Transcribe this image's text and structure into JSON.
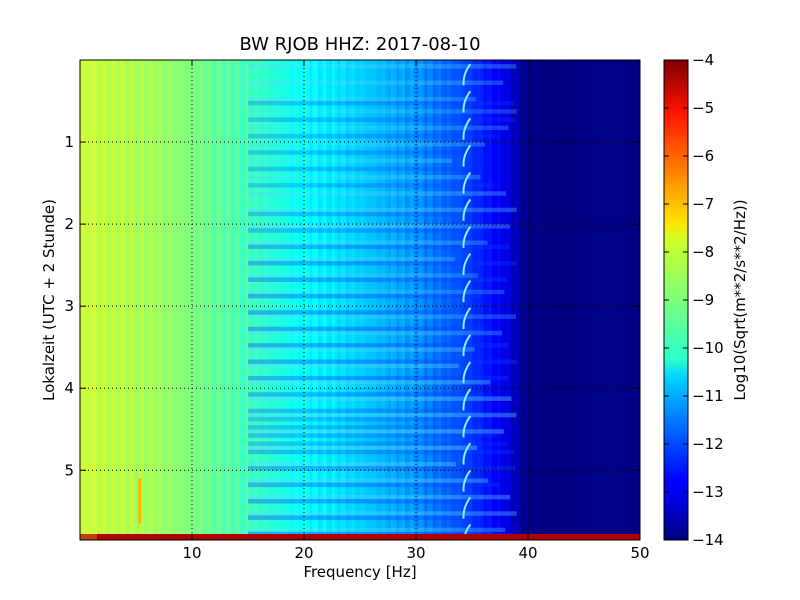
{
  "chart_data": {
    "type": "heatmap",
    "title": "BW RJOB HHZ: 2017-08-10",
    "xlabel": "Frequency [Hz]",
    "ylabel": "Lokalzeit (UTC + 2 Stunde)",
    "xlim": [
      0,
      50
    ],
    "ylim": [
      5.85,
      0
    ],
    "y_inverted": true,
    "x_ticks": [
      10,
      20,
      30,
      40,
      50
    ],
    "x_tick_labels": [
      "10",
      "20",
      "30",
      "40",
      "50"
    ],
    "y_ticks": [
      1,
      2,
      3,
      4,
      5
    ],
    "y_tick_labels": [
      "1",
      "2",
      "3",
      "4",
      "5"
    ],
    "grid": true,
    "colormap": "jet",
    "colorbar": {
      "label": "Log10(Sqrt(m**2/s**2/Hz))",
      "range": [
        -14,
        -4
      ],
      "ticks": [
        -4,
        -5,
        -6,
        -7,
        -8,
        -9,
        -10,
        -11,
        -12,
        -13,
        -14
      ],
      "tick_labels": [
        "−4",
        "−5",
        "−6",
        "−7",
        "−8",
        "−9",
        "−10",
        "−11",
        "−12",
        "−13",
        "−14"
      ]
    },
    "profile": {
      "frequency_hz": [
        0,
        3,
        6,
        10,
        15,
        20,
        25,
        30,
        34,
        38,
        40,
        50
      ],
      "log10_amplitude": [
        -8.3,
        -8.4,
        -8.6,
        -9.0,
        -9.6,
        -10.2,
        -10.7,
        -11.3,
        -12.0,
        -13.0,
        -14.0,
        -14.0
      ]
    },
    "features": {
      "tonal_line_hz": 34.5,
      "transient_hz": 5.2,
      "transient_time_range": [
        5.1,
        5.65
      ],
      "saturated_row_time": 5.85
    }
  }
}
